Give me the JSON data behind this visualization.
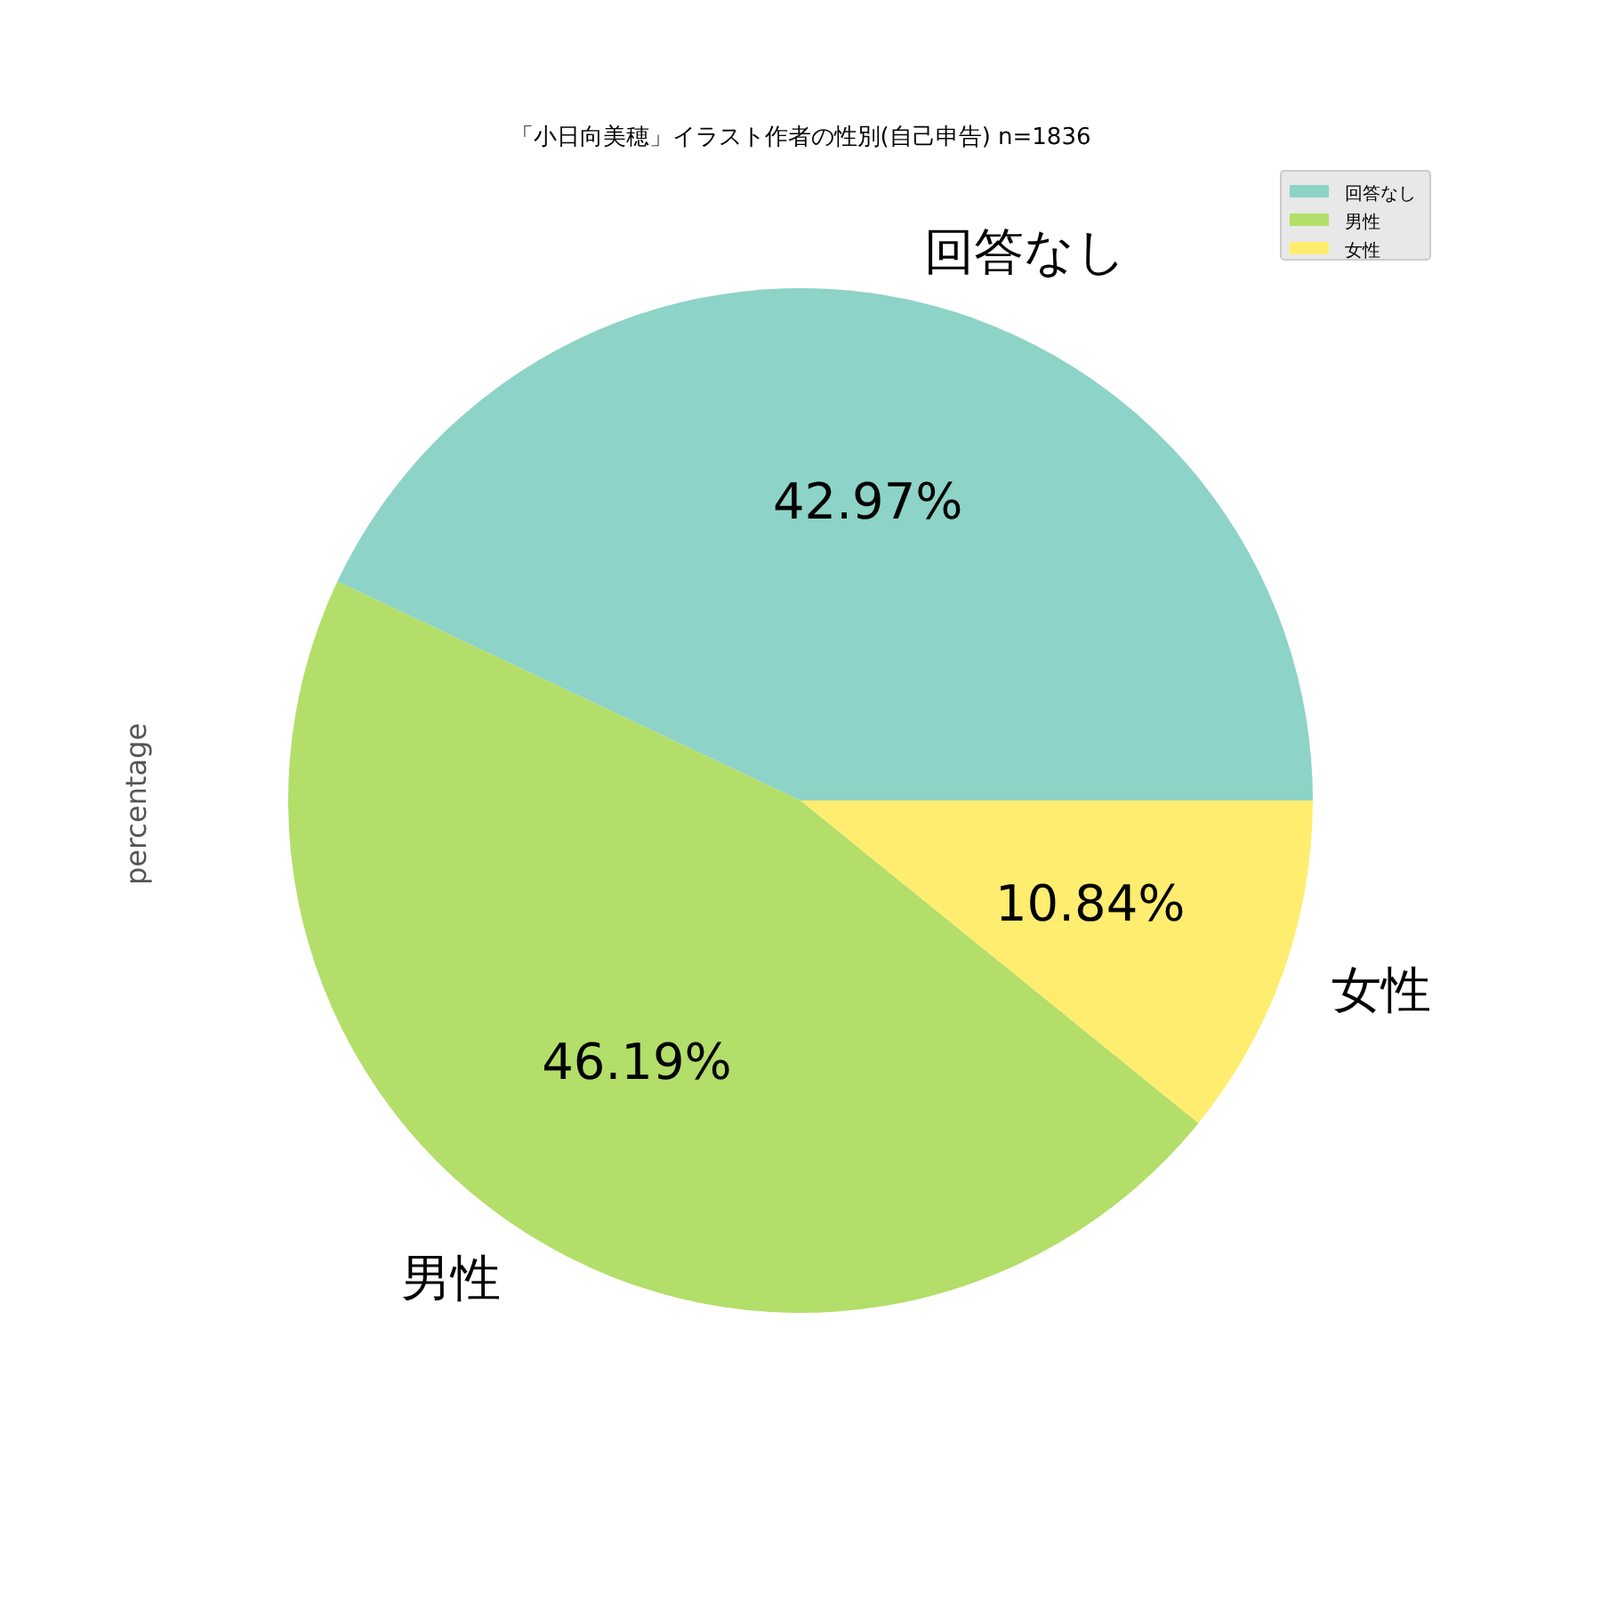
{
  "chart_data": {
    "type": "pie",
    "title": "「小日向美穂」イラスト作者の性別(自己申告) n=1836",
    "ylabel": "percentage",
    "categories": [
      "回答なし",
      "男性",
      "女性"
    ],
    "values": [
      42.97,
      46.19,
      10.84
    ],
    "colors": [
      "#8dd3c7",
      "#b3de69",
      "#ffed6f"
    ],
    "value_labels": [
      "42.97%",
      "46.19%",
      "10.84%"
    ],
    "legend": "top right"
  }
}
